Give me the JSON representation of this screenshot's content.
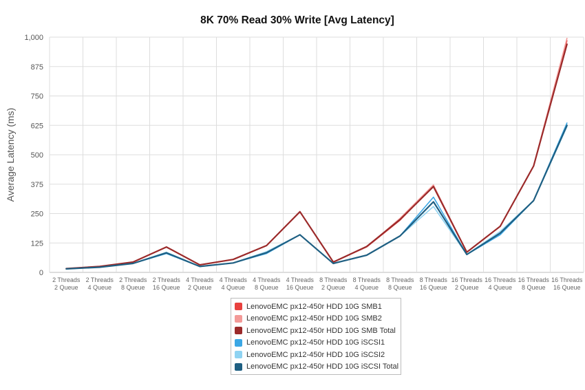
{
  "chart_data": {
    "type": "line",
    "title": "8K 70% Read 30% Write [Avg Latency]",
    "xlabel": "",
    "ylabel": "Average Latency (ms)",
    "ylim": [
      0,
      1000
    ],
    "y_ticks": [
      "0",
      "125",
      "250",
      "375",
      "500",
      "625",
      "750",
      "875",
      "1,000"
    ],
    "y_tick_values": [
      0,
      125,
      250,
      375,
      500,
      625,
      750,
      875,
      1000
    ],
    "grid": true,
    "legend_position": "bottom",
    "categories": [
      [
        "2 Threads",
        "2 Queue"
      ],
      [
        "2 Threads",
        "4 Queue"
      ],
      [
        "2 Threads",
        "8 Queue"
      ],
      [
        "2 Threads",
        "16 Queue"
      ],
      [
        "4 Threads",
        "2 Queue"
      ],
      [
        "4 Threads",
        "4 Queue"
      ],
      [
        "4 Threads",
        "8 Queue"
      ],
      [
        "4 Threads",
        "16 Queue"
      ],
      [
        "8 Threads",
        "2 Queue"
      ],
      [
        "8 Threads",
        "4 Queue"
      ],
      [
        "8 Threads",
        "8 Queue"
      ],
      [
        "8 Threads",
        "16 Queue"
      ],
      [
        "16 Threads",
        "2 Queue"
      ],
      [
        "16 Threads",
        "4 Queue"
      ],
      [
        "16 Threads",
        "8 Queue"
      ],
      [
        "16 Threads",
        "16 Queue"
      ]
    ],
    "series": [
      {
        "name": "LenovoEMC px12-450r HDD 10G SMB1",
        "color": "#e8413e",
        "values": [
          16,
          25,
          44,
          108,
          32,
          55,
          114,
          258,
          44,
          108,
          222,
          368,
          86,
          196,
          452,
          985
        ]
      },
      {
        "name": "LenovoEMC px12-450r HDD 10G SMB2",
        "color": "#f39a98",
        "values": [
          16,
          25,
          44,
          108,
          32,
          55,
          114,
          258,
          44,
          108,
          230,
          372,
          86,
          196,
          452,
          995
        ]
      },
      {
        "name": "LenovoEMC px12-450r HDD 10G SMB Total",
        "color": "#9b2a2a",
        "values": [
          16,
          25,
          44,
          108,
          32,
          55,
          114,
          258,
          44,
          110,
          225,
          365,
          86,
          196,
          452,
          970
        ]
      },
      {
        "name": "LenovoEMC px12-450r HDD 10G iSCSI1",
        "color": "#3ba7e5",
        "values": [
          15,
          22,
          38,
          80,
          25,
          40,
          80,
          160,
          38,
          73,
          155,
          320,
          76,
          160,
          305,
          635
        ]
      },
      {
        "name": "LenovoEMC px12-450r HDD 10G iSCSI2",
        "color": "#8fd3f2",
        "values": [
          15,
          22,
          38,
          86,
          25,
          40,
          88,
          160,
          38,
          73,
          155,
          280,
          76,
          174,
          305,
          620
        ]
      },
      {
        "name": "LenovoEMC px12-450r HDD 10G iSCSI Total",
        "color": "#1f5f82",
        "values": [
          15,
          22,
          38,
          83,
          25,
          40,
          84,
          160,
          38,
          73,
          155,
          300,
          76,
          167,
          305,
          625
        ]
      }
    ]
  }
}
